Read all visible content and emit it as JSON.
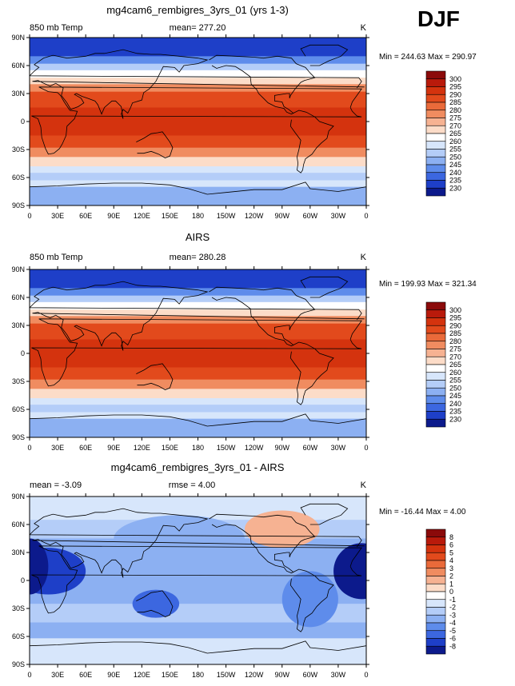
{
  "season": "DJF",
  "panels": [
    {
      "id": "model",
      "title": "mg4cam6_rembigres_3yrs_01 (yrs 1-3)",
      "variable": "850 mb Temp",
      "stat_left": "",
      "stat_center": "mean= 277.20",
      "units": "K",
      "minmax": "Min = 244.63 Max = 290.97",
      "colorbar_labels": [
        "300",
        "295",
        "290",
        "285",
        "280",
        "275",
        "270",
        "265",
        "260",
        "255",
        "250",
        "245",
        "240",
        "235",
        "230"
      ],
      "colorbar_colors": [
        "#8b0a0a",
        "#b91a0b",
        "#d4330e",
        "#e24a1c",
        "#ea6a3a",
        "#f08c60",
        "#f6b292",
        "#fcdcc8",
        "#ffffff",
        "#d7e6fb",
        "#b4cdf8",
        "#8cb0f2",
        "#5e8ceb",
        "#3c67e0",
        "#1e3fc8",
        "#0c1a8c"
      ],
      "pattern": "temp"
    },
    {
      "id": "obs",
      "title": "AIRS",
      "variable": "850 mb Temp",
      "stat_left": "",
      "stat_center": "mean= 280.28",
      "units": "K",
      "minmax": "Min = 199.93 Max = 321.34",
      "colorbar_labels": [
        "300",
        "295",
        "290",
        "285",
        "280",
        "275",
        "270",
        "265",
        "260",
        "255",
        "250",
        "245",
        "240",
        "235",
        "230"
      ],
      "colorbar_colors": [
        "#8b0a0a",
        "#b91a0b",
        "#d4330e",
        "#e24a1c",
        "#ea6a3a",
        "#f08c60",
        "#f6b292",
        "#fcdcc8",
        "#ffffff",
        "#d7e6fb",
        "#b4cdf8",
        "#8cb0f2",
        "#5e8ceb",
        "#3c67e0",
        "#1e3fc8",
        "#0c1a8c"
      ],
      "pattern": "temp"
    },
    {
      "id": "diff",
      "title": "mg4cam6_rembigres_3yrs_01 - AIRS",
      "variable": "",
      "stat_left": "mean =  -3.09",
      "stat_center": "rmse =    4.00",
      "units": "K",
      "minmax": "Min = -16.44 Max =    4.00",
      "colorbar_labels": [
        "8",
        "6",
        "5",
        "4",
        "3",
        "2",
        "1",
        "0",
        "-1",
        "-2",
        "-3",
        "-4",
        "-5",
        "-6",
        "-8"
      ],
      "colorbar_colors": [
        "#8b0a0a",
        "#b91a0b",
        "#d4330e",
        "#e24a1c",
        "#ea6a3a",
        "#f08c60",
        "#f6b292",
        "#fcdcc8",
        "#ffffff",
        "#d7e6fb",
        "#b4cdf8",
        "#8cb0f2",
        "#5e8ceb",
        "#3c67e0",
        "#1e3fc8",
        "#0c1a8c"
      ],
      "pattern": "diff"
    }
  ],
  "lat_labels": [
    "90N",
    "60N",
    "30N",
    "0",
    "30S",
    "60S",
    "90S"
  ],
  "lon_labels": [
    "0",
    "30E",
    "60E",
    "90E",
    "120E",
    "150E",
    "180",
    "150W",
    "120W",
    "90W",
    "60W",
    "30W",
    "0"
  ]
}
